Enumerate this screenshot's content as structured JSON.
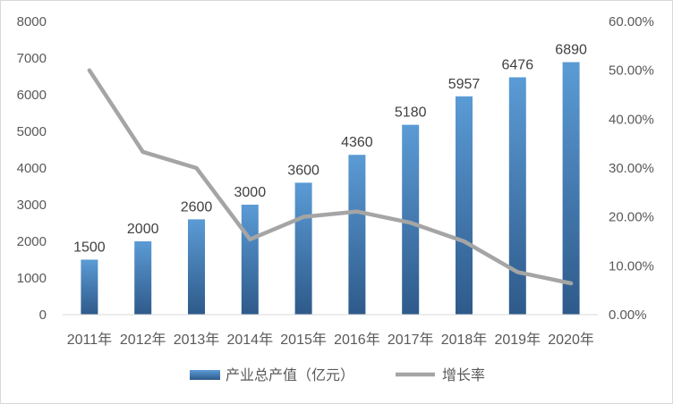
{
  "chart_data": {
    "type": "bar",
    "categories": [
      "2011年",
      "2012年",
      "2013年",
      "2014年",
      "2015年",
      "2016年",
      "2017年",
      "2018年",
      "2019年",
      "2020年"
    ],
    "series": [
      {
        "name": "产业总产值（亿元）",
        "type": "bar",
        "axis": "left",
        "values": [
          1500,
          2000,
          2600,
          3000,
          3600,
          4360,
          5180,
          5957,
          6476,
          6890
        ],
        "data_labels": [
          "1500",
          "2000",
          "2600",
          "3000",
          "3600",
          "4360",
          "5180",
          "5957",
          "6476",
          "6890"
        ],
        "color_top": "#5b9bd5",
        "color_bottom": "#2e5a8a"
      },
      {
        "name": "增长率",
        "type": "line",
        "axis": "right",
        "values": [
          0.5,
          0.333,
          0.3,
          0.154,
          0.2,
          0.211,
          0.188,
          0.15,
          0.087,
          0.064
        ],
        "color": "#a5a5a5"
      }
    ],
    "y_left": {
      "ylim": [
        0,
        8000
      ],
      "ticks": [
        "0",
        "1000",
        "2000",
        "3000",
        "4000",
        "5000",
        "6000",
        "7000",
        "8000"
      ]
    },
    "y_right": {
      "ylim": [
        0,
        0.6
      ],
      "ticks": [
        "0.00%",
        "10.00%",
        "20.00%",
        "30.00%",
        "40.00%",
        "50.00%",
        "60.00%"
      ]
    },
    "title": "",
    "grid": false,
    "legend_position": "bottom"
  }
}
